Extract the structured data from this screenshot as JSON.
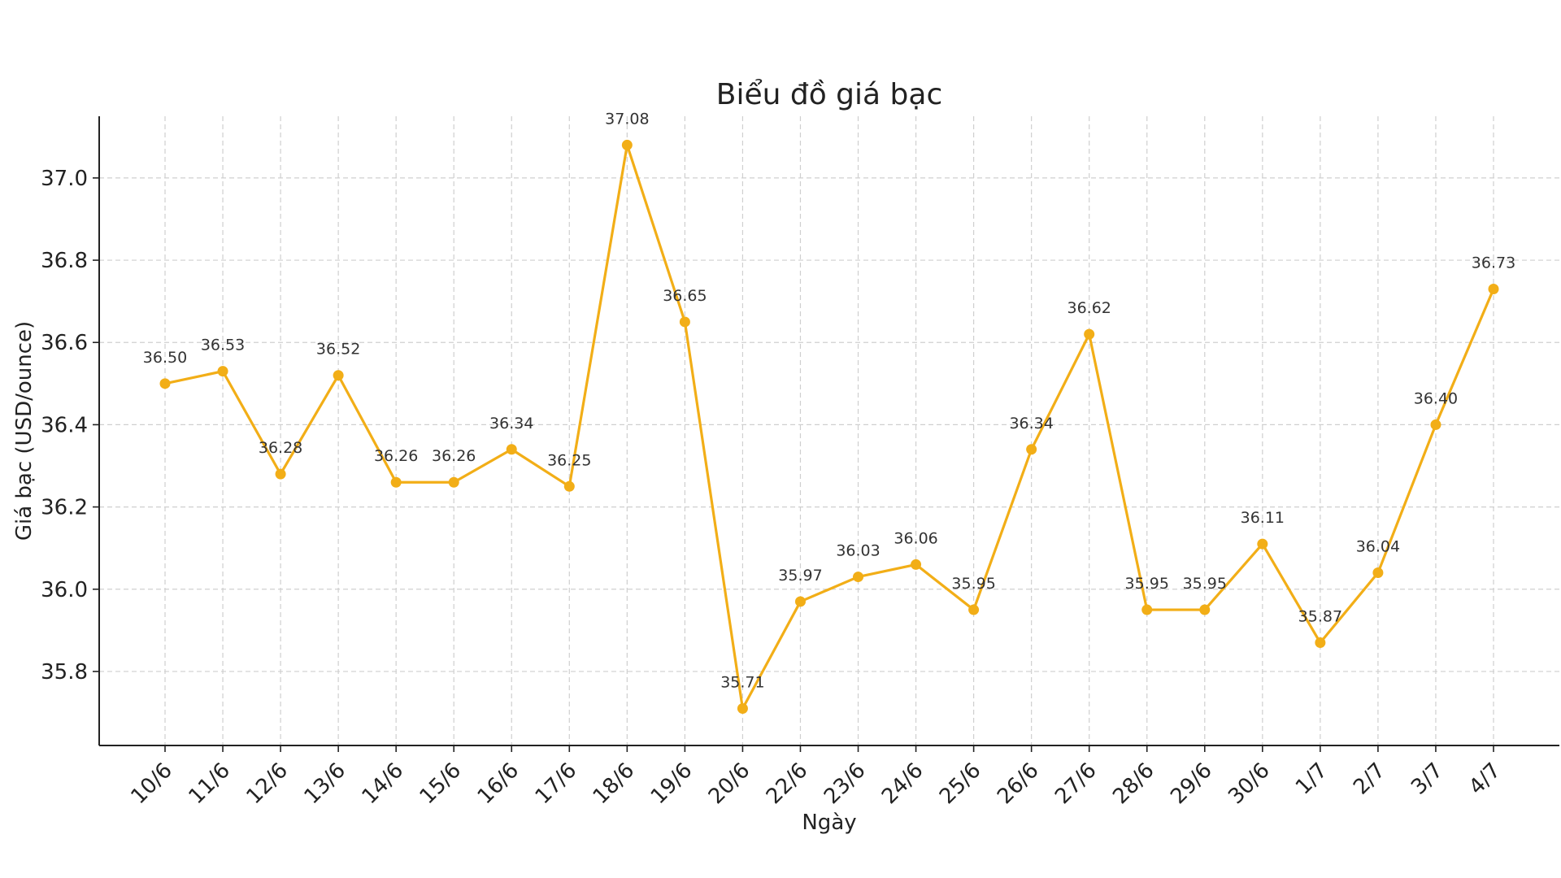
{
  "chart_data": {
    "type": "line",
    "title": "Biểu đồ giá bạc",
    "xlabel": "Ngày",
    "ylabel": "Giá bạc (USD/ounce)",
    "categories": [
      "10/6",
      "11/6",
      "12/6",
      "13/6",
      "14/6",
      "15/6",
      "16/6",
      "17/6",
      "18/6",
      "19/6",
      "20/6",
      "22/6",
      "23/6",
      "24/6",
      "25/6",
      "26/6",
      "27/6",
      "28/6",
      "29/6",
      "30/6",
      "1/7",
      "2/7",
      "3/7",
      "4/7"
    ],
    "values": [
      36.5,
      36.53,
      36.28,
      36.52,
      36.26,
      36.26,
      36.34,
      36.25,
      37.08,
      36.65,
      35.71,
      35.97,
      36.03,
      36.06,
      35.95,
      36.34,
      36.62,
      35.95,
      35.95,
      36.11,
      35.87,
      36.04,
      36.4,
      36.73
    ],
    "data_labels": [
      "36.50",
      "36.53",
      "36.28",
      "36.52",
      "36.26",
      "36.26",
      "36.34",
      "36.25",
      "37.08",
      "36.65",
      "35.71",
      "35.97",
      "36.03",
      "36.06",
      "35.95",
      "36.34",
      "36.62",
      "35.95",
      "35.95",
      "36.11",
      "35.87",
      "36.04",
      "36.40",
      "36.73"
    ],
    "yticks": [
      "35.8",
      "36.0",
      "36.2",
      "36.4",
      "36.6",
      "36.8",
      "37.0"
    ],
    "ylim": [
      35.62,
      37.15
    ],
    "grid": true,
    "line_color": "#F2AE17"
  }
}
